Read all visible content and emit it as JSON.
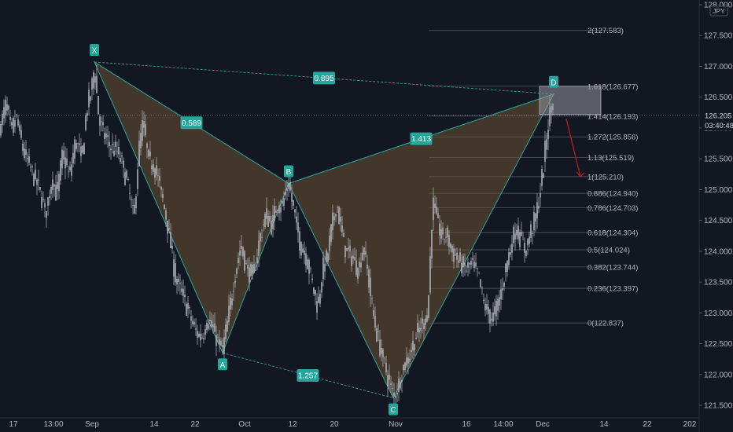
{
  "currency": "JPY",
  "price_tag": "126.205",
  "countdown": "03:40:48",
  "colors": {
    "background": "#131722",
    "candle": "#b2b5be",
    "pattern_fill": "#6b5233",
    "pattern_line": "#26a69a",
    "label_bg": "#26a69a",
    "fib_line": "#787b86",
    "target_arrow": "#b71c1c",
    "prz_box": "#9598a1"
  },
  "chart_data": {
    "type": "candlestick",
    "symbol_currency": "JPY",
    "ylim": [
      121.45,
      128.0
    ],
    "y_ticks": [
      {
        "value": 128.0,
        "label": "128.000"
      },
      {
        "value": 127.5,
        "label": "127.500"
      },
      {
        "value": 127.0,
        "label": "127.000"
      },
      {
        "value": 126.5,
        "label": "126.500"
      },
      {
        "value": 126.0,
        "label": "126.000"
      },
      {
        "value": 125.5,
        "label": "125.500"
      },
      {
        "value": 125.0,
        "label": "125.000"
      },
      {
        "value": 124.5,
        "label": "124.500"
      },
      {
        "value": 124.0,
        "label": "124.000"
      },
      {
        "value": 123.5,
        "label": "123.500"
      },
      {
        "value": 123.0,
        "label": "123.000"
      },
      {
        "value": 122.5,
        "label": "122.500"
      },
      {
        "value": 122.0,
        "label": "122.000"
      },
      {
        "value": 121.5,
        "label": "121.500"
      }
    ],
    "x_ticks": [
      {
        "index": 17,
        "label": "17"
      },
      {
        "index": 68,
        "label": "13:00"
      },
      {
        "index": 117,
        "label": "Sep"
      },
      {
        "index": 196,
        "label": "14"
      },
      {
        "index": 248,
        "label": "22"
      },
      {
        "index": 311,
        "label": "Oct"
      },
      {
        "index": 372,
        "label": "12"
      },
      {
        "index": 425,
        "label": "20"
      },
      {
        "index": 503,
        "label": "Nov"
      },
      {
        "index": 593,
        "label": "16"
      },
      {
        "index": 640,
        "label": "14:00"
      },
      {
        "index": 690,
        "label": "Dec"
      },
      {
        "index": 768,
        "label": "14"
      },
      {
        "index": 823,
        "label": "22"
      },
      {
        "index": 877,
        "label": "202"
      }
    ],
    "pattern": {
      "name": "bearish bat",
      "points": [
        {
          "label": "X",
          "index": 120,
          "price": 127.07
        },
        {
          "label": "A",
          "index": 283,
          "price": 122.35
        },
        {
          "label": "B",
          "index": 367,
          "price": 125.1
        },
        {
          "label": "C",
          "index": 500,
          "price": 121.62
        },
        {
          "label": "D",
          "index": 704,
          "price": 126.55
        }
      ],
      "ratios": [
        {
          "legs": "XA-AB",
          "value": "0.589"
        },
        {
          "legs": "XA-XD",
          "value": "0.895"
        },
        {
          "legs": "AB-BC",
          "value": "1.257"
        },
        {
          "legs": "BC-CD",
          "value": "1.413"
        }
      ]
    },
    "fibonacci": {
      "levels": [
        {
          "ratio": "2",
          "price": 127.583
        },
        {
          "ratio": "1.618",
          "price": 126.677
        },
        {
          "ratio": "1.414",
          "price": 126.193
        },
        {
          "ratio": "1.272",
          "price": 125.856
        },
        {
          "ratio": "1.13",
          "price": 125.519
        },
        {
          "ratio": "1",
          "price": 125.21
        },
        {
          "ratio": "0.886",
          "price": 124.94
        },
        {
          "ratio": "0.786",
          "price": 124.703
        },
        {
          "ratio": "0.618",
          "price": 124.304
        },
        {
          "ratio": "0.5",
          "price": 124.024
        },
        {
          "ratio": "0.382",
          "price": 123.744
        },
        {
          "ratio": "0.236",
          "price": 123.397
        },
        {
          "ratio": "0",
          "price": 122.837
        }
      ]
    },
    "prz_box": {
      "x_from_index": 686,
      "x_to_index": 764,
      "price_high": 126.677,
      "price_low": 126.22
    },
    "target_arrow": {
      "from_index": 720,
      "from_price": 126.15,
      "to_index": 738,
      "to_price": 125.21
    },
    "last_price": 126.205,
    "price_path": [
      [
        0,
        126.0
      ],
      [
        8,
        126.4
      ],
      [
        14,
        125.9
      ],
      [
        20,
        126.2
      ],
      [
        30,
        125.6
      ],
      [
        40,
        125.3
      ],
      [
        50,
        125.0
      ],
      [
        58,
        124.6
      ],
      [
        66,
        125.2
      ],
      [
        72,
        124.9
      ],
      [
        80,
        125.6
      ],
      [
        88,
        125.2
      ],
      [
        96,
        125.8
      ],
      [
        104,
        125.5
      ],
      [
        110,
        126.3
      ],
      [
        116,
        126.6
      ],
      [
        120,
        127.0
      ],
      [
        126,
        126.1
      ],
      [
        132,
        125.9
      ],
      [
        140,
        125.7
      ],
      [
        150,
        125.6
      ],
      [
        158,
        125.3
      ],
      [
        165,
        124.9
      ],
      [
        170,
        124.5
      ],
      [
        176,
        125.6
      ],
      [
        182,
        126.1
      ],
      [
        188,
        125.5
      ],
      [
        196,
        125.4
      ],
      [
        204,
        125.0
      ],
      [
        212,
        124.5
      ],
      [
        218,
        124.0
      ],
      [
        224,
        123.5
      ],
      [
        232,
        123.3
      ],
      [
        240,
        123.0
      ],
      [
        248,
        122.7
      ],
      [
        256,
        122.6
      ],
      [
        264,
        122.9
      ],
      [
        272,
        122.7
      ],
      [
        278,
        122.5
      ],
      [
        283,
        122.4
      ],
      [
        290,
        122.9
      ],
      [
        298,
        123.6
      ],
      [
        306,
        124.1
      ],
      [
        314,
        123.7
      ],
      [
        322,
        123.6
      ],
      [
        330,
        124.2
      ],
      [
        338,
        124.6
      ],
      [
        346,
        124.4
      ],
      [
        352,
        124.8
      ],
      [
        358,
        124.7
      ],
      [
        364,
        125.0
      ],
      [
        367,
        125.1
      ],
      [
        374,
        124.6
      ],
      [
        382,
        124.1
      ],
      [
        390,
        123.9
      ],
      [
        398,
        123.4
      ],
      [
        404,
        123.1
      ],
      [
        410,
        123.7
      ],
      [
        416,
        123.9
      ],
      [
        422,
        124.4
      ],
      [
        428,
        124.8
      ],
      [
        434,
        124.3
      ],
      [
        440,
        124.0
      ],
      [
        448,
        123.9
      ],
      [
        456,
        123.7
      ],
      [
        462,
        124.1
      ],
      [
        468,
        123.6
      ],
      [
        474,
        123.0
      ],
      [
        480,
        122.6
      ],
      [
        488,
        122.2
      ],
      [
        494,
        121.9
      ],
      [
        500,
        121.65
      ],
      [
        506,
        121.8
      ],
      [
        512,
        122.1
      ],
      [
        520,
        122.3
      ],
      [
        528,
        122.6
      ],
      [
        536,
        122.8
      ],
      [
        544,
        123.0
      ],
      [
        550,
        124.8
      ],
      [
        556,
        124.5
      ],
      [
        562,
        124.2
      ],
      [
        568,
        124.3
      ],
      [
        574,
        124.0
      ],
      [
        580,
        123.9
      ],
      [
        586,
        123.8
      ],
      [
        592,
        123.7
      ],
      [
        600,
        123.8
      ],
      [
        608,
        123.6
      ],
      [
        614,
        123.2
      ],
      [
        620,
        123.0
      ],
      [
        626,
        122.9
      ],
      [
        632,
        123.1
      ],
      [
        638,
        123.4
      ],
      [
        644,
        123.8
      ],
      [
        650,
        124.1
      ],
      [
        656,
        124.4
      ],
      [
        662,
        124.2
      ],
      [
        668,
        124.0
      ],
      [
        674,
        124.3
      ],
      [
        680,
        124.5
      ],
      [
        686,
        124.9
      ],
      [
        692,
        125.5
      ],
      [
        696,
        126.0
      ],
      [
        700,
        126.3
      ],
      [
        704,
        126.55
      ]
    ]
  }
}
